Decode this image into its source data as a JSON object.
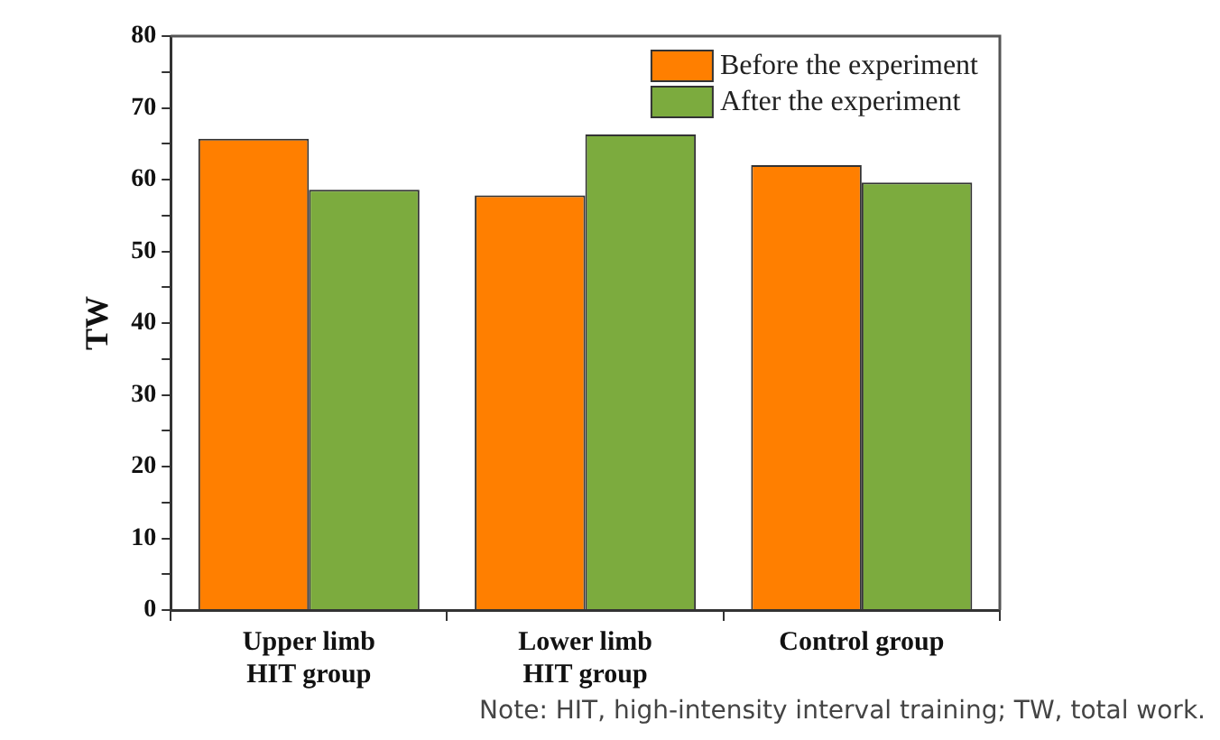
{
  "chart_data": {
    "type": "bar",
    "ylabel": "TW",
    "categories": [
      "Upper limb\nHIT group",
      "Lower limb\nHIT group",
      "Control group"
    ],
    "series": [
      {
        "name": "Before the experiment",
        "color": "#ff7f00",
        "values": [
          65.7,
          57.8,
          62.0
        ]
      },
      {
        "name": "After the experiment",
        "color": "#7cab3e",
        "values": [
          58.6,
          66.3,
          59.6
        ]
      }
    ],
    "ylim": [
      0,
      80
    ],
    "yticks": [
      0,
      {
        "value": 5,
        "label": null
      },
      10,
      {
        "value": 15,
        "label": null
      },
      20,
      {
        "value": 25,
        "label": null
      },
      30,
      {
        "value": 35,
        "label": null
      },
      40,
      {
        "value": 45,
        "label": null
      },
      50,
      {
        "value": 55,
        "label": null
      },
      60,
      {
        "value": 65,
        "label": null
      },
      70,
      {
        "value": 75,
        "label": null
      },
      80
    ],
    "legend": "top right",
    "annotations": [
      "Note: HIT, high-intensity interval training; TW, total work."
    ]
  }
}
